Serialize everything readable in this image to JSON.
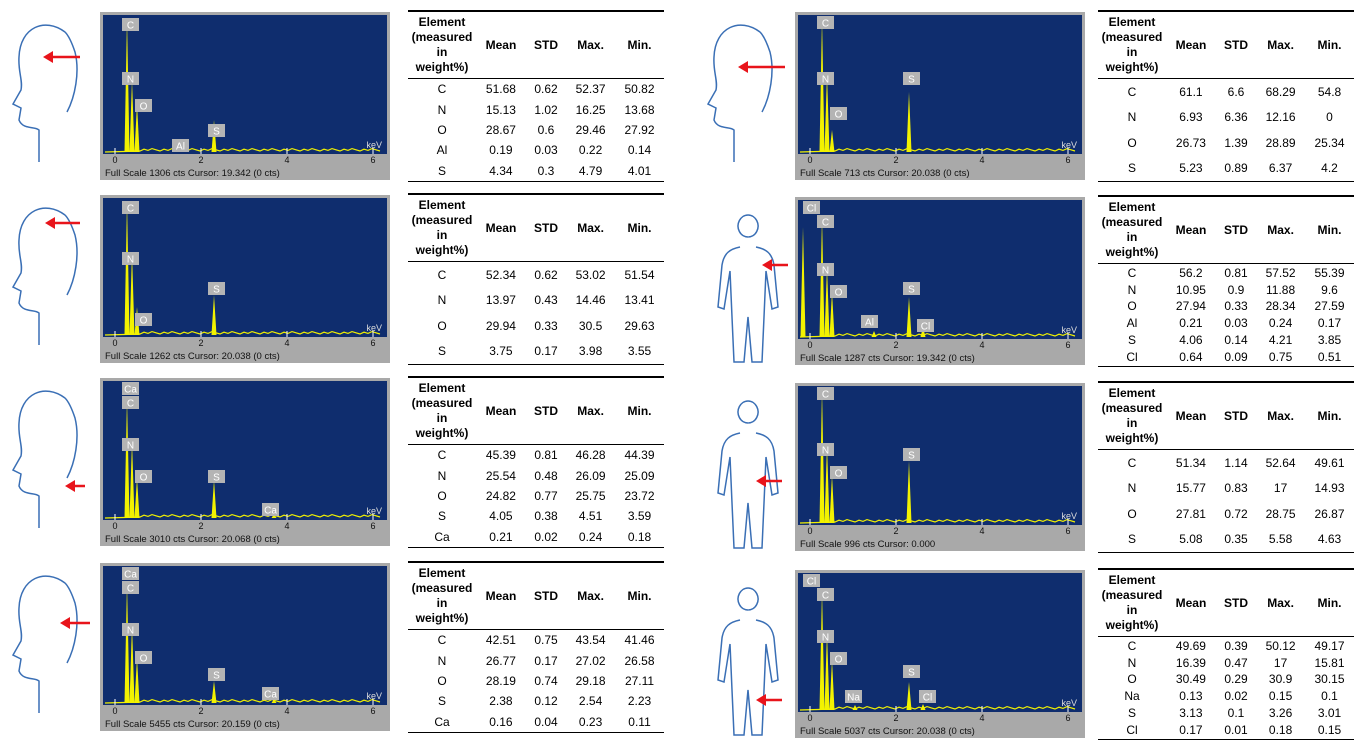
{
  "panels": [
    {
      "spectrum": {
        "peaks": [
          "C",
          "N",
          "O",
          "Al",
          "S"
        ],
        "ticks": [
          0,
          2,
          4,
          6
        ],
        "unit": "keV",
        "footer": "Full Scale 1306 cts Cursor: 19.342  (0 cts)"
      },
      "table": {
        "header": [
          "Element (measured in weight%)",
          "Mean",
          "STD",
          "Max.",
          "Min."
        ],
        "rows": [
          [
            "C",
            51.68,
            0.62,
            52.37,
            50.82
          ],
          [
            "N",
            15.13,
            1.02,
            16.25,
            13.68
          ],
          [
            "O",
            28.67,
            0.6,
            29.46,
            27.92
          ],
          [
            "Al",
            0.19,
            0.03,
            0.22,
            0.14
          ],
          [
            "S",
            4.34,
            0.3,
            4.79,
            4.01
          ]
        ]
      }
    },
    {
      "spectrum": {
        "peaks": [
          "C",
          "N",
          "O",
          "S"
        ],
        "ticks": [
          0,
          2,
          4,
          6
        ],
        "unit": "keV",
        "footer": "Full Scale 1262 cts Cursor: 20.038  (0 cts)"
      },
      "table": {
        "header": [
          "Element (measured in weight%)",
          "Mean",
          "STD",
          "Max.",
          "Min."
        ],
        "rows": [
          [
            "C",
            52.34,
            0.62,
            53.02,
            51.54
          ],
          [
            "N",
            13.97,
            0.43,
            14.46,
            13.41
          ],
          [
            "O",
            29.94,
            0.33,
            30.5,
            29.63
          ],
          [
            "S",
            3.75,
            0.17,
            3.98,
            3.55
          ]
        ]
      }
    },
    {
      "spectrum": {
        "peaks": [
          "Ca",
          "C",
          "N",
          "O",
          "S",
          "Ca"
        ],
        "ticks": [
          0,
          2,
          4,
          6
        ],
        "unit": "keV",
        "footer": "Full Scale 3010 cts Cursor: 20.068  (0 cts)"
      },
      "table": {
        "header": [
          "Element (measured in weight%)",
          "Mean",
          "STD",
          "Max.",
          "Min."
        ],
        "rows": [
          [
            "C",
            45.39,
            0.81,
            46.28,
            44.39
          ],
          [
            "N",
            25.54,
            0.48,
            26.09,
            25.09
          ],
          [
            "O",
            24.82,
            0.77,
            25.75,
            23.72
          ],
          [
            "S",
            4.05,
            0.38,
            4.51,
            3.59
          ],
          [
            "Ca",
            0.21,
            0.02,
            0.24,
            0.18
          ]
        ]
      }
    },
    {
      "spectrum": {
        "peaks": [
          "Ca",
          "C",
          "N",
          "O",
          "S",
          "Ca"
        ],
        "ticks": [
          0,
          2,
          4,
          6
        ],
        "unit": "keV",
        "footer": "Full Scale 5455 cts Cursor: 20.159  (0 cts)"
      },
      "table": {
        "header": [
          "Element (measured in weight%)",
          "Mean",
          "STD",
          "Max.",
          "Min."
        ],
        "rows": [
          [
            "C",
            42.51,
            0.75,
            43.54,
            41.46
          ],
          [
            "N",
            26.77,
            0.17,
            27.02,
            26.58
          ],
          [
            "O",
            28.19,
            0.74,
            29.18,
            27.11
          ],
          [
            "S",
            2.38,
            0.12,
            2.54,
            2.23
          ],
          [
            "Ca",
            0.16,
            0.04,
            0.23,
            0.11
          ]
        ]
      }
    },
    {
      "spectrum": {
        "peaks": [
          "C",
          "N",
          "O",
          "S"
        ],
        "ticks": [
          0,
          2,
          4,
          6
        ],
        "unit": "keV",
        "footer": "Full Scale 713 cts Cursor: 20.038  (0 cts)"
      },
      "table": {
        "header": [
          "Element (measured in weight%)",
          "Mean",
          "STD",
          "Max.",
          "Min."
        ],
        "rows": [
          [
            "C",
            61.1,
            6.6,
            68.29,
            54.8
          ],
          [
            "N",
            6.93,
            6.36,
            12.16,
            0
          ],
          [
            "O",
            26.73,
            1.39,
            28.89,
            25.34
          ],
          [
            "S",
            5.23,
            0.89,
            6.37,
            4.2
          ]
        ]
      }
    },
    {
      "spectrum": {
        "peaks": [
          "Cl",
          "C",
          "N",
          "O",
          "Al",
          "S",
          "Cl"
        ],
        "ticks": [
          0,
          2,
          4,
          6
        ],
        "unit": "keV",
        "footer": "Full Scale 1287 cts Cursor: 19.342  (0 cts)"
      },
      "table": {
        "header": [
          "Element (measured in weight%)",
          "Mean",
          "STD",
          "Max.",
          "Min."
        ],
        "rows": [
          [
            "C",
            56.2,
            0.81,
            57.52,
            55.39
          ],
          [
            "N",
            10.95,
            0.9,
            11.88,
            9.6
          ],
          [
            "O",
            27.94,
            0.33,
            28.34,
            27.59
          ],
          [
            "Al",
            0.21,
            0.03,
            0.24,
            0.17
          ],
          [
            "S",
            4.06,
            0.14,
            4.21,
            3.85
          ],
          [
            "Cl",
            0.64,
            0.09,
            0.75,
            0.51
          ]
        ]
      }
    },
    {
      "spectrum": {
        "peaks": [
          "C",
          "N",
          "O",
          "S"
        ],
        "ticks": [
          0,
          2,
          4,
          6
        ],
        "unit": "keV",
        "footer": "Full Scale 996 cts Cursor: 0.000"
      },
      "table": {
        "header": [
          "Element (measured in weight%)",
          "Mean",
          "STD",
          "Max.",
          "Min."
        ],
        "rows": [
          [
            "C",
            51.34,
            1.14,
            52.64,
            49.61
          ],
          [
            "N",
            15.77,
            0.83,
            17,
            14.93
          ],
          [
            "O",
            27.81,
            0.72,
            28.75,
            26.87
          ],
          [
            "S",
            5.08,
            0.35,
            5.58,
            4.63
          ]
        ]
      }
    },
    {
      "spectrum": {
        "peaks": [
          "Cl",
          "C",
          "N",
          "O",
          "Na",
          "S",
          "Cl"
        ],
        "ticks": [
          0,
          2,
          4,
          6
        ],
        "unit": "keV",
        "footer": "Full Scale 5037 cts Cursor: 20.038  (0 cts)"
      },
      "table": {
        "header": [
          "Element (measured in weight%)",
          "Mean",
          "STD",
          "Max.",
          "Min."
        ],
        "rows": [
          [
            "C",
            49.69,
            0.39,
            50.12,
            49.17
          ],
          [
            "N",
            16.39,
            0.47,
            17,
            15.81
          ],
          [
            "O",
            30.49,
            0.29,
            30.9,
            30.15
          ],
          [
            "Na",
            0.13,
            0.02,
            0.15,
            0.1
          ],
          [
            "S",
            3.13,
            0.1,
            3.26,
            3.01
          ],
          [
            "Cl",
            0.17,
            0.01,
            0.18,
            0.15
          ]
        ]
      }
    }
  ]
}
